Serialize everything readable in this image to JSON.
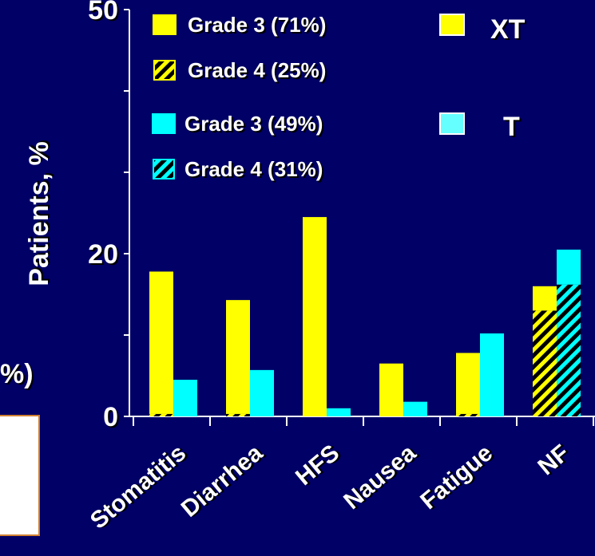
{
  "chart_data": {
    "type": "bar",
    "ylabel": "Patients, %",
    "yticks": [
      {
        "value": 0,
        "label": "0"
      },
      {
        "value": 20,
        "label": "20"
      },
      {
        "value": 50,
        "label": "50"
      }
    ],
    "ylim": [
      0,
      50
    ],
    "categories": [
      "Stomatitis",
      "Diarrhea",
      "HFS",
      "Nausea",
      "Fatigue",
      "NF"
    ],
    "series": [
      {
        "name": "XT",
        "color": "#ffff00",
        "grade3": [
          17.5,
          14,
          24.5,
          6.5,
          7.5,
          3
        ],
        "grade4": [
          0.3,
          0.3,
          0,
          0,
          0.3,
          13
        ],
        "legend": {
          "grade3": "Grade 3 (71%)",
          "grade4": "Grade 4 (25%)"
        }
      },
      {
        "name": "T",
        "color": "#00ffff",
        "grade3": [
          4.5,
          5.7,
          1,
          1.8,
          10.2,
          4.3
        ],
        "grade4": [
          0,
          0,
          0,
          0,
          0,
          16.2
        ],
        "legend": {
          "grade3": "Grade 3 (49%)",
          "grade4": "Grade 4 (31%)"
        }
      }
    ],
    "partial_label": "%)"
  }
}
